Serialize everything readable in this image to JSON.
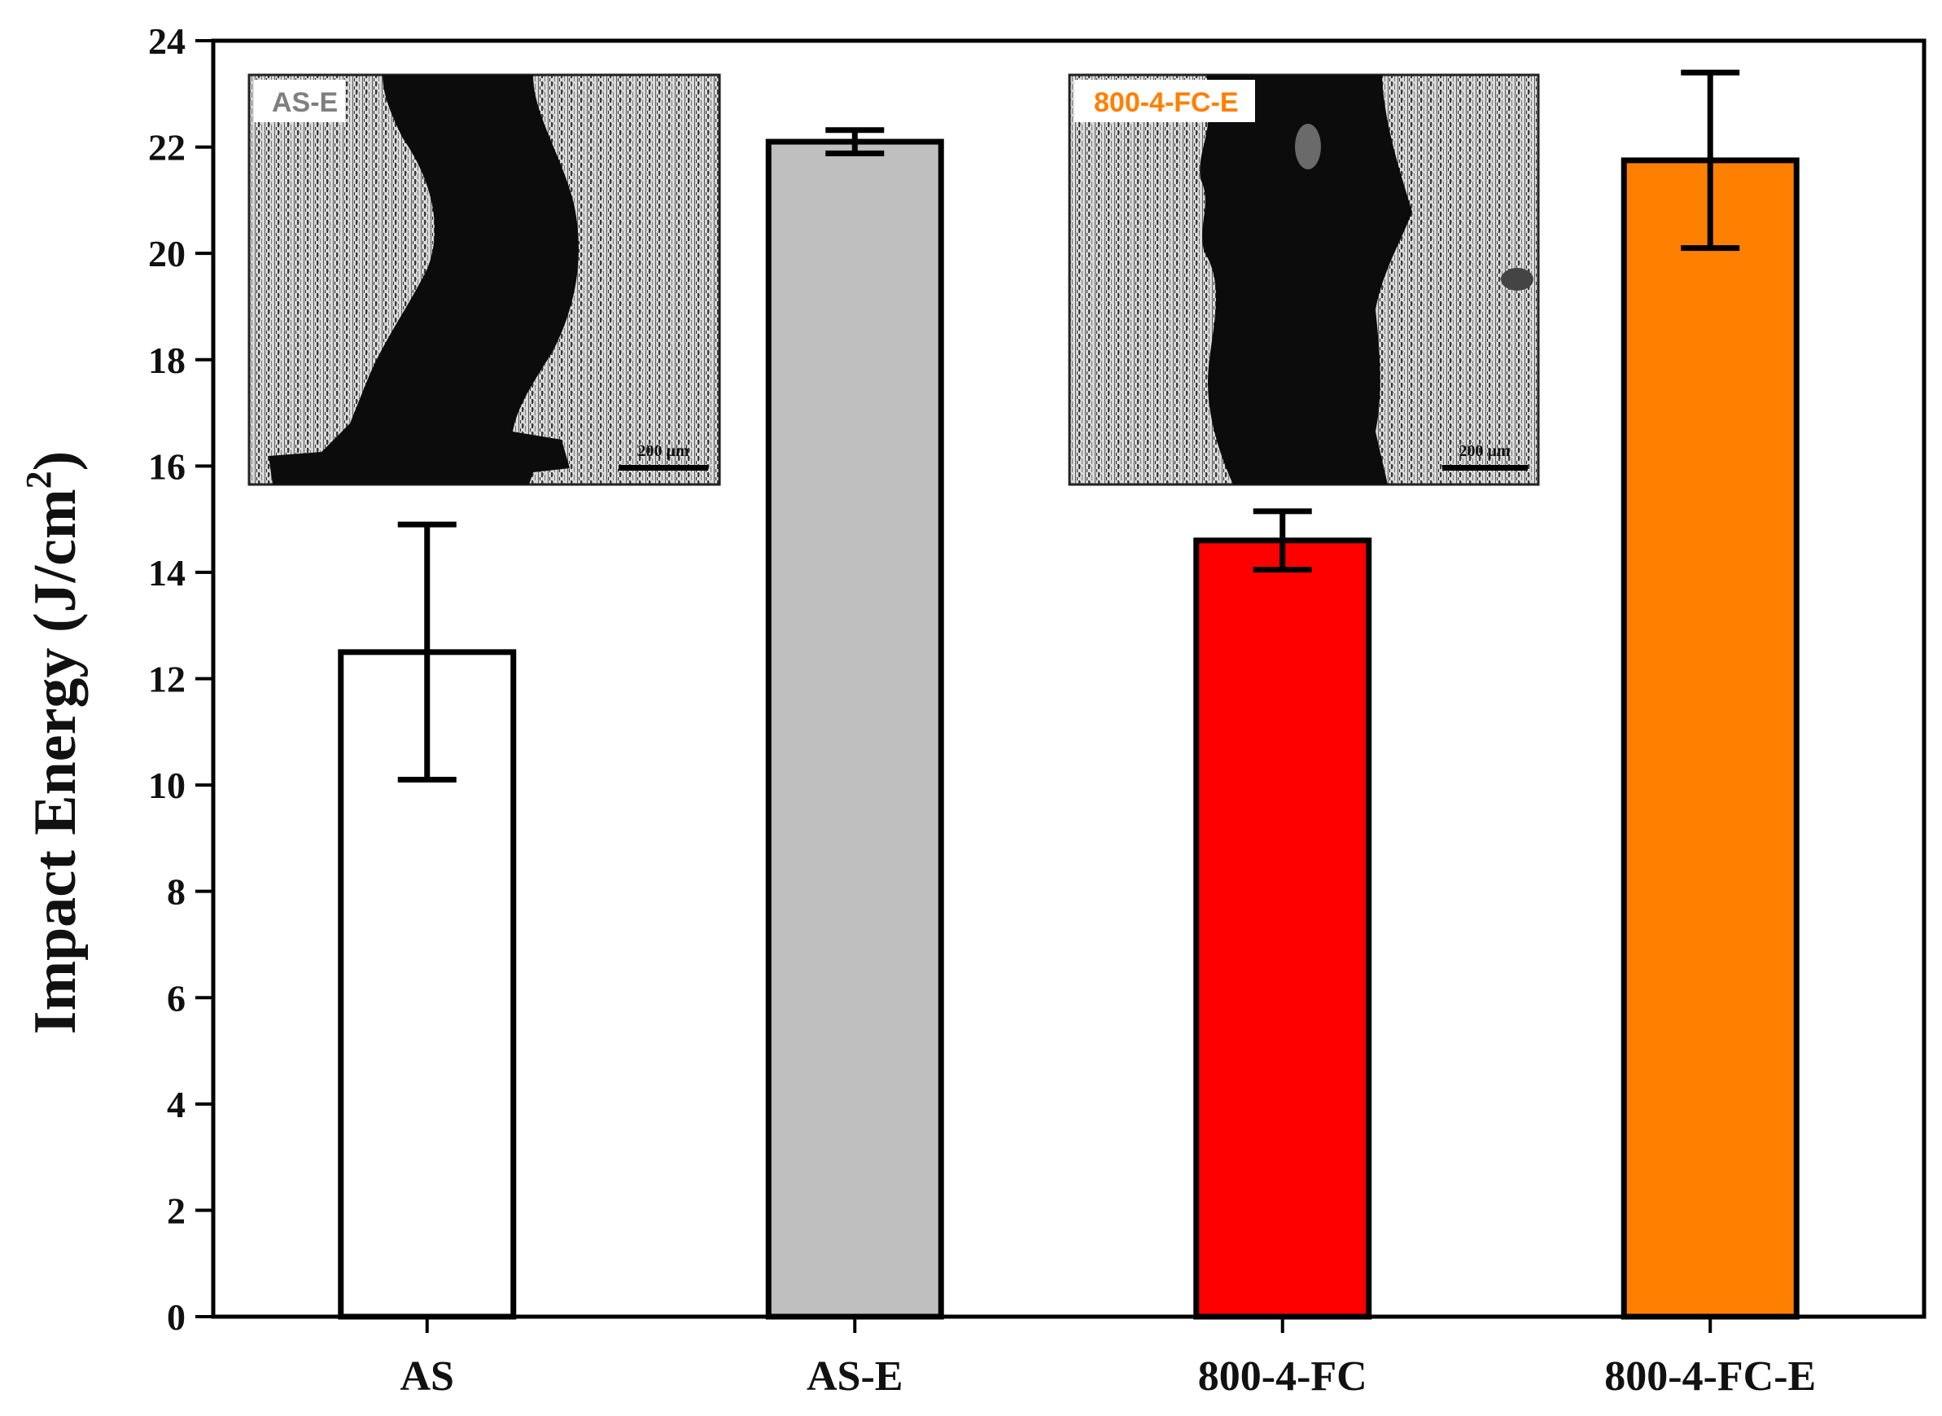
{
  "chart_data": {
    "type": "bar",
    "categories": [
      "AS",
      "AS-E",
      "800-4-FC",
      "800-4-FC-E"
    ],
    "values": [
      12.5,
      22.1,
      14.6,
      21.75
    ],
    "errors": [
      2.4,
      0.22,
      0.55,
      1.65
    ],
    "bar_colors": [
      "#ffffff",
      "#bfbfbf",
      "#ff0000",
      "#ff8000"
    ],
    "ylabel": "Impact Energy (J/cm",
    "ylabel_sup": "2",
    "ylabel_close": ")",
    "ylim": [
      0,
      24
    ],
    "yticks": [
      "0",
      "2",
      "4",
      "6",
      "8",
      "10",
      "12",
      "14",
      "16",
      "18",
      "20",
      "22",
      "24"
    ],
    "grid": false
  },
  "insets": [
    {
      "tag": "AS-E",
      "tag_color": "#7f7f7f",
      "scale_label": "200 μm"
    },
    {
      "tag": "800-4-FC-E",
      "tag_color": "#ff8000",
      "scale_label": "200 μm"
    }
  ]
}
